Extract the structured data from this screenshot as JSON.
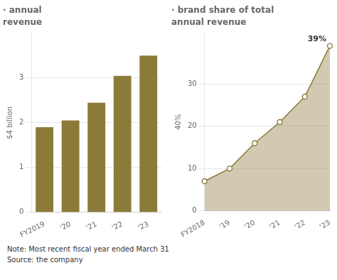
{
  "chart_data": [
    {
      "type": "bar",
      "title": "· annual",
      "subtitle": "revenue",
      "ylabel": "$4 billion",
      "categories": [
        "FY2019",
        "'20",
        "'21",
        "'22",
        "'23"
      ],
      "values": [
        1.9,
        2.05,
        2.45,
        3.05,
        3.5
      ],
      "color": "#8B7A3A",
      "ylim": [
        0,
        4.0
      ],
      "yticks": [
        0,
        1,
        2,
        3
      ],
      "grid": true
    },
    {
      "type": "area",
      "title": "· brand share of total",
      "subtitle": "annual revenue",
      "ylabel": "40%",
      "categories": [
        "FY2018",
        "'19",
        "'20",
        "'21",
        "'22",
        "'23"
      ],
      "values": [
        7,
        10,
        16,
        21,
        27,
        39
      ],
      "color": "#8B7A3A",
      "ylim": [
        0,
        42
      ],
      "yticks": [
        0,
        10,
        20,
        30
      ],
      "grid": true,
      "annotation": "39%"
    }
  ],
  "note": "Note: Most recent fiscal year ended March 31",
  "source": "Source: the company"
}
